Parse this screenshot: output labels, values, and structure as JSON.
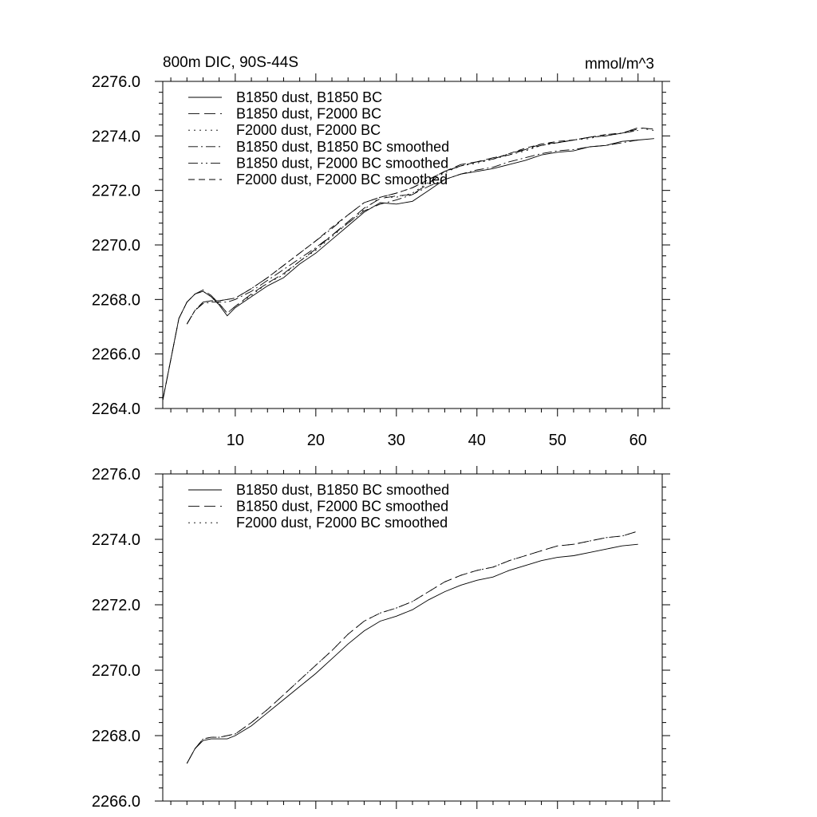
{
  "chart_data": [
    {
      "type": "line",
      "title": "800m DIC, 90S-44S",
      "units": "mmol/m^3",
      "xlim": [
        1,
        63
      ],
      "ylim": [
        2264.0,
        2276.0
      ],
      "xticks": [
        10,
        20,
        30,
        40,
        50,
        60
      ],
      "yticks": [
        2264.0,
        2266.0,
        2268.0,
        2270.0,
        2272.0,
        2274.0,
        2276.0
      ],
      "ytick_labels": [
        "2264.0",
        "2266.0",
        "2268.0",
        "2270.0",
        "2272.0",
        "2274.0",
        "2276.0"
      ],
      "legend_position": "top-left",
      "series": [
        {
          "name": "B1850 dust, B1850 BC",
          "dash": "solid",
          "x": [
            1,
            2,
            3,
            4,
            5,
            6,
            7,
            8,
            9,
            10,
            12,
            14,
            16,
            18,
            20,
            22,
            24,
            26,
            28,
            30,
            32,
            34,
            36,
            38,
            40,
            42,
            44,
            46,
            48,
            50,
            52,
            54,
            56,
            58,
            60,
            62
          ],
          "y": [
            2264.3,
            2265.8,
            2267.3,
            2267.9,
            2268.2,
            2268.3,
            2268.1,
            2267.8,
            2267.4,
            2267.7,
            2268.1,
            2268.5,
            2268.8,
            2269.3,
            2269.7,
            2270.2,
            2270.7,
            2271.2,
            2271.55,
            2271.5,
            2271.6,
            2272.0,
            2272.4,
            2272.6,
            2272.7,
            2272.8,
            2272.95,
            2273.1,
            2273.3,
            2273.4,
            2273.45,
            2273.6,
            2273.65,
            2273.8,
            2273.85,
            2273.9
          ]
        },
        {
          "name": "B1850 dust, F2000 BC",
          "dash": "long",
          "x": [
            1,
            2,
            3,
            4,
            5,
            6,
            7,
            8,
            9,
            10,
            12,
            14,
            16,
            18,
            20,
            22,
            24,
            26,
            28,
            30,
            32,
            34,
            36,
            38,
            40,
            42,
            44,
            46,
            48,
            50,
            52,
            54,
            56,
            58,
            60,
            62
          ],
          "y": [
            2264.3,
            2265.8,
            2267.3,
            2267.9,
            2268.2,
            2268.35,
            2268.15,
            2267.85,
            2267.5,
            2267.75,
            2268.2,
            2268.6,
            2268.95,
            2269.4,
            2269.85,
            2270.35,
            2270.85,
            2271.35,
            2271.7,
            2271.8,
            2271.85,
            2272.25,
            2272.7,
            2272.95,
            2273.05,
            2273.2,
            2273.3,
            2273.5,
            2273.7,
            2273.75,
            2273.85,
            2273.95,
            2274.0,
            2274.1,
            2274.3,
            2274.25
          ]
        },
        {
          "name": "F2000 dust, F2000 BC",
          "dash": "dot",
          "x": [
            1,
            2,
            3,
            4,
            5,
            6,
            7,
            8,
            9,
            10,
            12,
            14,
            16,
            18,
            20,
            22,
            24,
            26,
            28,
            30,
            32,
            34,
            36,
            38,
            40,
            42,
            44,
            46,
            48,
            50,
            52,
            54,
            56,
            58,
            60,
            62
          ],
          "y": [
            2264.3,
            2265.8,
            2267.3,
            2267.9,
            2268.2,
            2268.3,
            2268.1,
            2267.85,
            2267.5,
            2267.75,
            2268.15,
            2268.6,
            2268.9,
            2269.4,
            2269.8,
            2270.3,
            2270.8,
            2271.3,
            2271.75,
            2271.75,
            2271.9,
            2272.3,
            2272.65,
            2272.9,
            2273.0,
            2273.15,
            2273.3,
            2273.45,
            2273.65,
            2273.75,
            2273.85,
            2273.9,
            2274.05,
            2274.1,
            2274.3,
            2274.2
          ]
        },
        {
          "name": "B1850 dust, B1850 BC smoothed",
          "dash": "dashdot",
          "x": [
            4,
            5,
            6,
            7,
            8,
            9,
            10,
            12,
            14,
            16,
            18,
            20,
            22,
            24,
            26,
            28,
            30,
            32,
            34,
            36,
            38,
            40,
            42,
            44,
            46,
            48,
            50,
            52,
            54,
            56,
            58,
            60
          ],
          "y": [
            2267.1,
            2267.6,
            2267.85,
            2267.9,
            2267.9,
            2267.9,
            2268.0,
            2268.3,
            2268.7,
            2269.1,
            2269.5,
            2269.9,
            2270.35,
            2270.8,
            2271.25,
            2271.5,
            2271.65,
            2271.85,
            2272.15,
            2272.4,
            2272.6,
            2272.75,
            2272.85,
            2273.05,
            2273.2,
            2273.35,
            2273.45,
            2273.5,
            2273.6,
            2273.65,
            2273.75,
            2273.85
          ]
        },
        {
          "name": "B1850 dust, F2000 BC smoothed",
          "dash": "dashdotdot",
          "x": [
            4,
            5,
            6,
            7,
            8,
            9,
            10,
            12,
            14,
            16,
            18,
            20,
            22,
            24,
            26,
            28,
            30,
            32,
            34,
            36,
            38,
            40,
            42,
            44,
            46,
            48,
            50,
            52,
            54,
            56,
            58,
            60
          ],
          "y": [
            2267.1,
            2267.6,
            2267.9,
            2267.95,
            2267.95,
            2268.0,
            2268.05,
            2268.4,
            2268.8,
            2269.25,
            2269.7,
            2270.15,
            2270.6,
            2271.1,
            2271.55,
            2271.75,
            2271.9,
            2272.1,
            2272.4,
            2272.7,
            2272.9,
            2273.05,
            2273.15,
            2273.35,
            2273.5,
            2273.65,
            2273.75,
            2273.85,
            2273.95,
            2274.0,
            2274.1,
            2274.2
          ]
        },
        {
          "name": "F2000 dust, F2000 BC smoothed",
          "dash": "dash",
          "x": [
            4,
            5,
            6,
            7,
            8,
            9,
            10,
            12,
            14,
            16,
            18,
            20,
            22,
            24,
            26,
            28,
            30,
            32,
            34,
            36,
            38,
            40,
            42,
            44,
            46,
            48,
            50,
            52,
            54,
            56,
            58,
            60
          ],
          "y": [
            2267.1,
            2267.6,
            2267.9,
            2267.95,
            2267.95,
            2268.0,
            2268.05,
            2268.4,
            2268.8,
            2269.25,
            2269.7,
            2270.15,
            2270.65,
            2271.1,
            2271.55,
            2271.75,
            2271.9,
            2272.1,
            2272.4,
            2272.7,
            2272.9,
            2273.05,
            2273.15,
            2273.35,
            2273.55,
            2273.7,
            2273.8,
            2273.85,
            2273.95,
            2274.05,
            2274.1,
            2274.25
          ]
        }
      ]
    },
    {
      "type": "line",
      "title": "",
      "xlim": [
        1,
        63
      ],
      "ylim": [
        2266.0,
        2276.0
      ],
      "xticks": [
        10,
        20,
        30,
        40,
        50,
        60
      ],
      "yticks": [
        2266.0,
        2268.0,
        2270.0,
        2272.0,
        2274.0,
        2276.0
      ],
      "ytick_labels": [
        "2266.0",
        "2268.0",
        "2270.0",
        "2272.0",
        "2274.0",
        "2276.0"
      ],
      "legend_position": "top-left",
      "series": [
        {
          "name": "B1850 dust, B1850 BC smoothed",
          "dash": "solid",
          "x": [
            4,
            5,
            6,
            7,
            8,
            9,
            10,
            12,
            14,
            16,
            18,
            20,
            22,
            24,
            26,
            28,
            30,
            32,
            34,
            36,
            38,
            40,
            42,
            44,
            46,
            48,
            50,
            52,
            54,
            56,
            58,
            60
          ],
          "y": [
            2267.15,
            2267.6,
            2267.85,
            2267.9,
            2267.9,
            2267.9,
            2268.0,
            2268.3,
            2268.7,
            2269.1,
            2269.5,
            2269.9,
            2270.35,
            2270.8,
            2271.2,
            2271.5,
            2271.65,
            2271.85,
            2272.15,
            2272.4,
            2272.6,
            2272.75,
            2272.85,
            2273.05,
            2273.2,
            2273.35,
            2273.45,
            2273.5,
            2273.6,
            2273.7,
            2273.8,
            2273.85
          ]
        },
        {
          "name": "B1850 dust, F2000 BC smoothed",
          "dash": "long",
          "x": [
            4,
            5,
            6,
            7,
            8,
            9,
            10,
            12,
            14,
            16,
            18,
            20,
            22,
            24,
            26,
            28,
            30,
            32,
            34,
            36,
            38,
            40,
            42,
            44,
            46,
            48,
            50,
            52,
            54,
            56,
            58,
            60
          ],
          "y": [
            2267.15,
            2267.6,
            2267.9,
            2267.95,
            2267.95,
            2268.0,
            2268.05,
            2268.4,
            2268.8,
            2269.25,
            2269.7,
            2270.15,
            2270.6,
            2271.1,
            2271.5,
            2271.75,
            2271.9,
            2272.1,
            2272.4,
            2272.7,
            2272.9,
            2273.05,
            2273.15,
            2273.35,
            2273.5,
            2273.65,
            2273.8,
            2273.85,
            2273.95,
            2274.05,
            2274.1,
            2274.25
          ]
        },
        {
          "name": "F2000 dust, F2000 BC smoothed",
          "dash": "dot",
          "x": [
            4,
            5,
            6,
            7,
            8,
            9,
            10,
            12,
            14,
            16,
            18,
            20,
            22,
            24,
            26,
            28,
            30,
            32,
            34,
            36,
            38,
            40,
            42,
            44,
            46,
            48,
            50,
            52,
            54,
            56,
            58,
            60
          ],
          "y": [
            2267.15,
            2267.6,
            2267.9,
            2267.95,
            2267.95,
            2268.0,
            2268.05,
            2268.4,
            2268.8,
            2269.25,
            2269.7,
            2270.15,
            2270.6,
            2271.1,
            2271.5,
            2271.75,
            2271.9,
            2272.1,
            2272.4,
            2272.7,
            2272.9,
            2273.05,
            2273.15,
            2273.35,
            2273.5,
            2273.65,
            2273.8,
            2273.85,
            2273.95,
            2274.05,
            2274.1,
            2274.25
          ]
        }
      ]
    }
  ]
}
